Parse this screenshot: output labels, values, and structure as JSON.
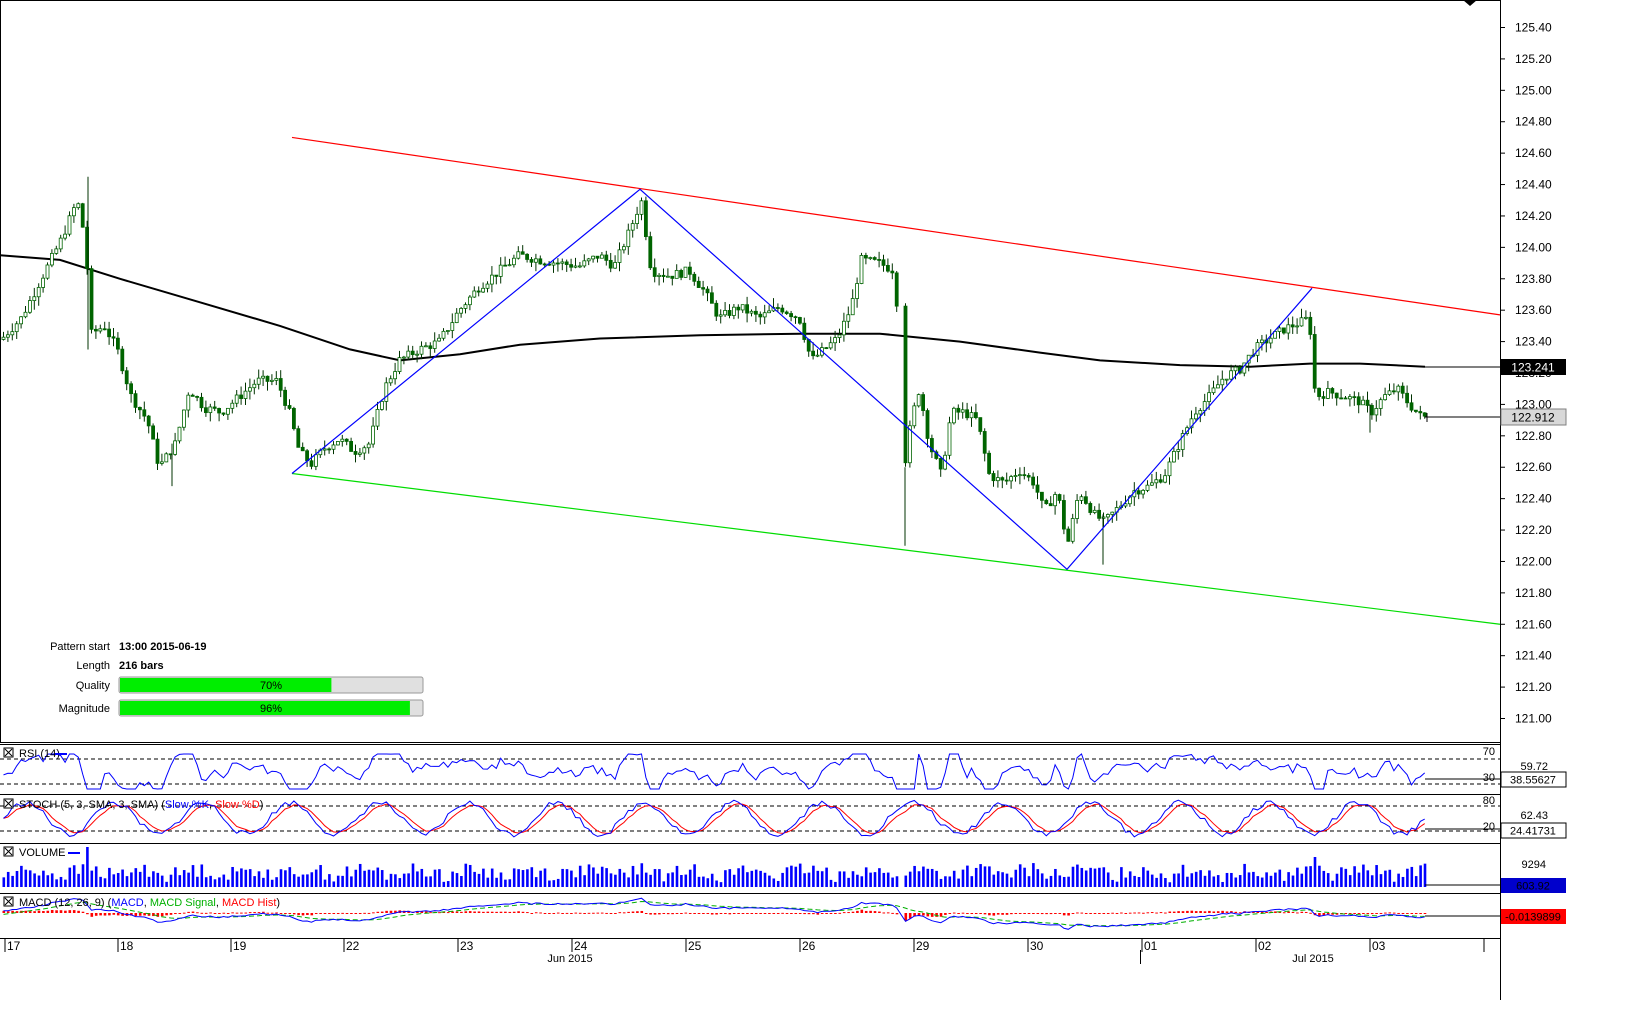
{
  "chart_data": {
    "type": "candlestick",
    "price_axis": {
      "range": [
        120.88,
        125.6
      ],
      "ticks": [
        "125.40",
        "125.20",
        "125.00",
        "124.80",
        "124.60",
        "124.40",
        "124.20",
        "124.00",
        "123.80",
        "123.60",
        "123.40",
        "123.20",
        "123.00",
        "122.80",
        "122.60",
        "122.40",
        "122.20",
        "122.00",
        "121.80",
        "121.60",
        "121.40",
        "121.20",
        "121.00"
      ]
    },
    "current_price": "122.912",
    "moving_average_value": "123.241",
    "date_ticks": [
      "17",
      "18",
      "19",
      "22",
      "23",
      "24",
      "25",
      "26",
      "29",
      "30",
      "01",
      "02",
      "03"
    ],
    "month_labels": [
      "Jun 2015",
      "Jul 2015"
    ],
    "pattern": {
      "resistance_line": {
        "start": [
          "2015-06-19 13:00",
          124.7
        ],
        "end": [
          "2015-07-03 end",
          123.57
        ]
      },
      "support_line": {
        "start": [
          "2015-06-19 13:00",
          122.56
        ],
        "end": [
          "2015-07-03 end",
          121.6
        ]
      },
      "zigzag": [
        [
          "2015-06-19 13:00",
          122.56
        ],
        [
          "2015-06-24 12:00",
          124.37
        ],
        [
          "2015-06-30 08:00",
          121.95
        ],
        [
          "2015-07-02 12:00",
          123.74
        ]
      ]
    },
    "indicators": [
      {
        "name": "RSI (14)",
        "levels": [
          "70",
          "30"
        ],
        "scale_label": "59.72",
        "value": "38.55627"
      },
      {
        "name": "STOCH (5, 3, SMA, 3, SMA) (Slow %K, Slow %D)",
        "levels": [
          "80",
          "20"
        ],
        "scale_label": "62.43",
        "value": "24.41731"
      },
      {
        "name": "VOLUME",
        "scale_label": "9294",
        "value": "603.92"
      },
      {
        "name": "MACD (12, 26, 9) (MACD, MACD Signal, MACD Hist)",
        "value": "-0.0139899"
      }
    ]
  },
  "info_panel": {
    "pattern_start_label": "Pattern start",
    "pattern_start_value": "13:00 2015-06-19",
    "length_label": "Length",
    "length_value": "216 bars",
    "quality_label": "Quality",
    "quality_percent": 70,
    "quality_text": "70%",
    "magnitude_label": "Magnitude",
    "magnitude_percent": 96,
    "magnitude_text": "96%"
  },
  "panels": {
    "rsi": {
      "title": "RSI (14)",
      "level_high": "70",
      "level_low": "30",
      "scale_label": "59.72",
      "value": "38.55627"
    },
    "stoch": {
      "title": "STOCH (5, 3, SMA, 3, SMA)",
      "k_label": "Slow %K",
      "d_label": "Slow %D",
      "level_high": "80",
      "level_low": "20",
      "scale_label": "62.43",
      "value": "24.41731"
    },
    "volume": {
      "title": "VOLUME",
      "scale_label": "9294",
      "value": "603.92"
    },
    "macd": {
      "title": "MACD (12, 26, 9)",
      "macd_label": "MACD",
      "signal_label": "MACD Signal",
      "hist_label": "MACD Hist",
      "value": "-0.0139899"
    }
  },
  "colors": {
    "bull_candle": "#006400",
    "bear_candle": "#006400",
    "moving_average": "#000000",
    "resistance": "#ff0000",
    "support": "#00dd00",
    "zigzag": "#0000ff",
    "rsi_line": "#0000ff",
    "stoch_k": "#0000ff",
    "stoch_d": "#ff0000",
    "volume_bar": "#0000ff",
    "macd_line": "#0000ff",
    "macd_signal": "#00b000",
    "macd_hist": "#ff0000",
    "progress_fill": "#00ee00"
  }
}
